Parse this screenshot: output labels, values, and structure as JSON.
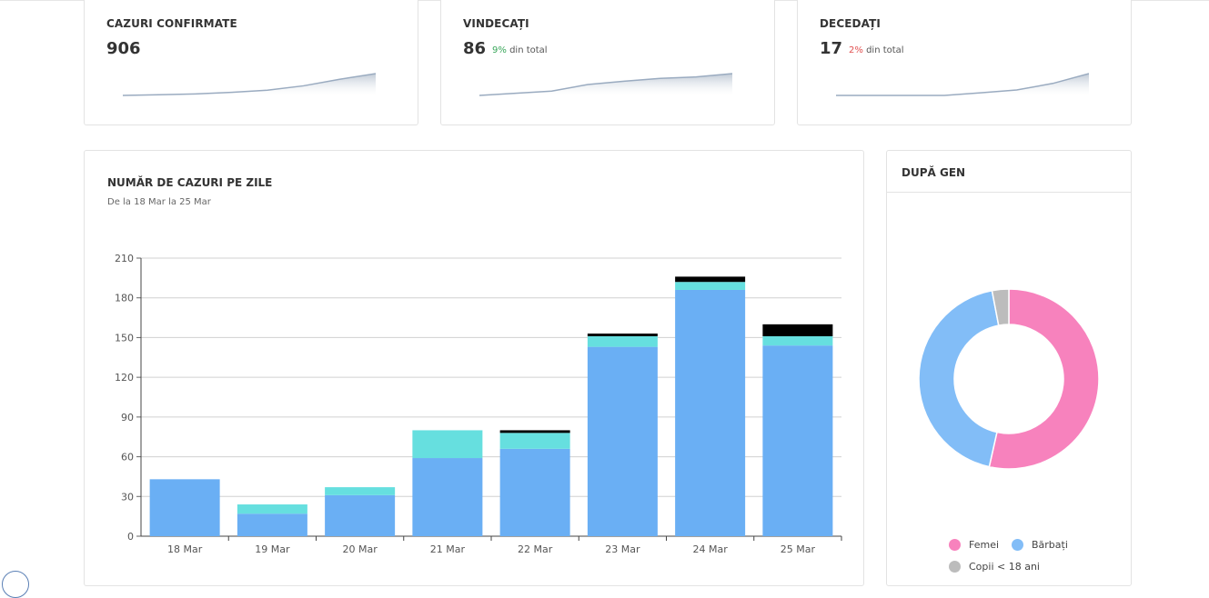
{
  "stats": [
    {
      "title": "CAZURI CONFIRMATE",
      "value": "906",
      "pct": "",
      "pct_suffix": "",
      "spark": [
        0,
        3,
        7,
        14,
        24,
        44,
        74,
        100
      ]
    },
    {
      "title": "VINDECAȚI",
      "value": "86",
      "pct": "9%",
      "pct_suffix": "din total",
      "spark": [
        0,
        10,
        20,
        50,
        65,
        78,
        85,
        100
      ]
    },
    {
      "title": "DECEDAȚI",
      "value": "17",
      "pct": "2%",
      "pct_suffix": "din total",
      "spark": [
        0,
        0,
        0,
        0,
        12,
        25,
        55,
        100
      ]
    }
  ],
  "daily_chart": {
    "title": "NUMĂR DE CAZURI PE ZILE",
    "subtitle": "De la 18 Mar la 25 Mar"
  },
  "gender_chart": {
    "title": "DUPĂ GEN",
    "legend": [
      "Femei",
      "Bărbați",
      "Copii < 18 ani"
    ]
  },
  "colors": {
    "blue": "#6aaff4",
    "cyan": "#66dfdf",
    "black": "#000000",
    "pink": "#f782bd",
    "lightblue": "#82bdf7",
    "gray": "#bcbcbc",
    "spark_line": "#9aabc0",
    "spark_fill": "#b9c4d1"
  },
  "chart_data": [
    {
      "type": "bar",
      "stacked": true,
      "title": "NUMĂR DE CAZURI PE ZILE",
      "subtitle": "De la 18 Mar la 25 Mar",
      "categories": [
        "18 Mar",
        "19 Mar",
        "20 Mar",
        "21 Mar",
        "22 Mar",
        "23 Mar",
        "24 Mar",
        "25 Mar"
      ],
      "series": [
        {
          "color": "#6aaff4",
          "values": [
            43,
            17,
            31,
            59,
            66,
            143,
            186,
            144
          ]
        },
        {
          "color": "#66dfdf",
          "values": [
            0,
            7,
            6,
            21,
            12,
            8,
            6,
            7
          ]
        },
        {
          "color": "#000000",
          "values": [
            0,
            0,
            0,
            0,
            2,
            2,
            4,
            9
          ]
        }
      ],
      "ylim": [
        0,
        210
      ],
      "yticks": [
        0,
        30,
        60,
        90,
        120,
        150,
        180,
        210
      ],
      "grid": true
    },
    {
      "type": "pie",
      "donut": true,
      "title": "DUPĂ GEN",
      "labels": [
        "Femei",
        "Bărbați",
        "Copii < 18 ani"
      ],
      "values": [
        53.5,
        43.5,
        3
      ],
      "colors": [
        "#f782bd",
        "#82bdf7",
        "#bcbcbc"
      ],
      "legend_position": "bottom"
    }
  ]
}
